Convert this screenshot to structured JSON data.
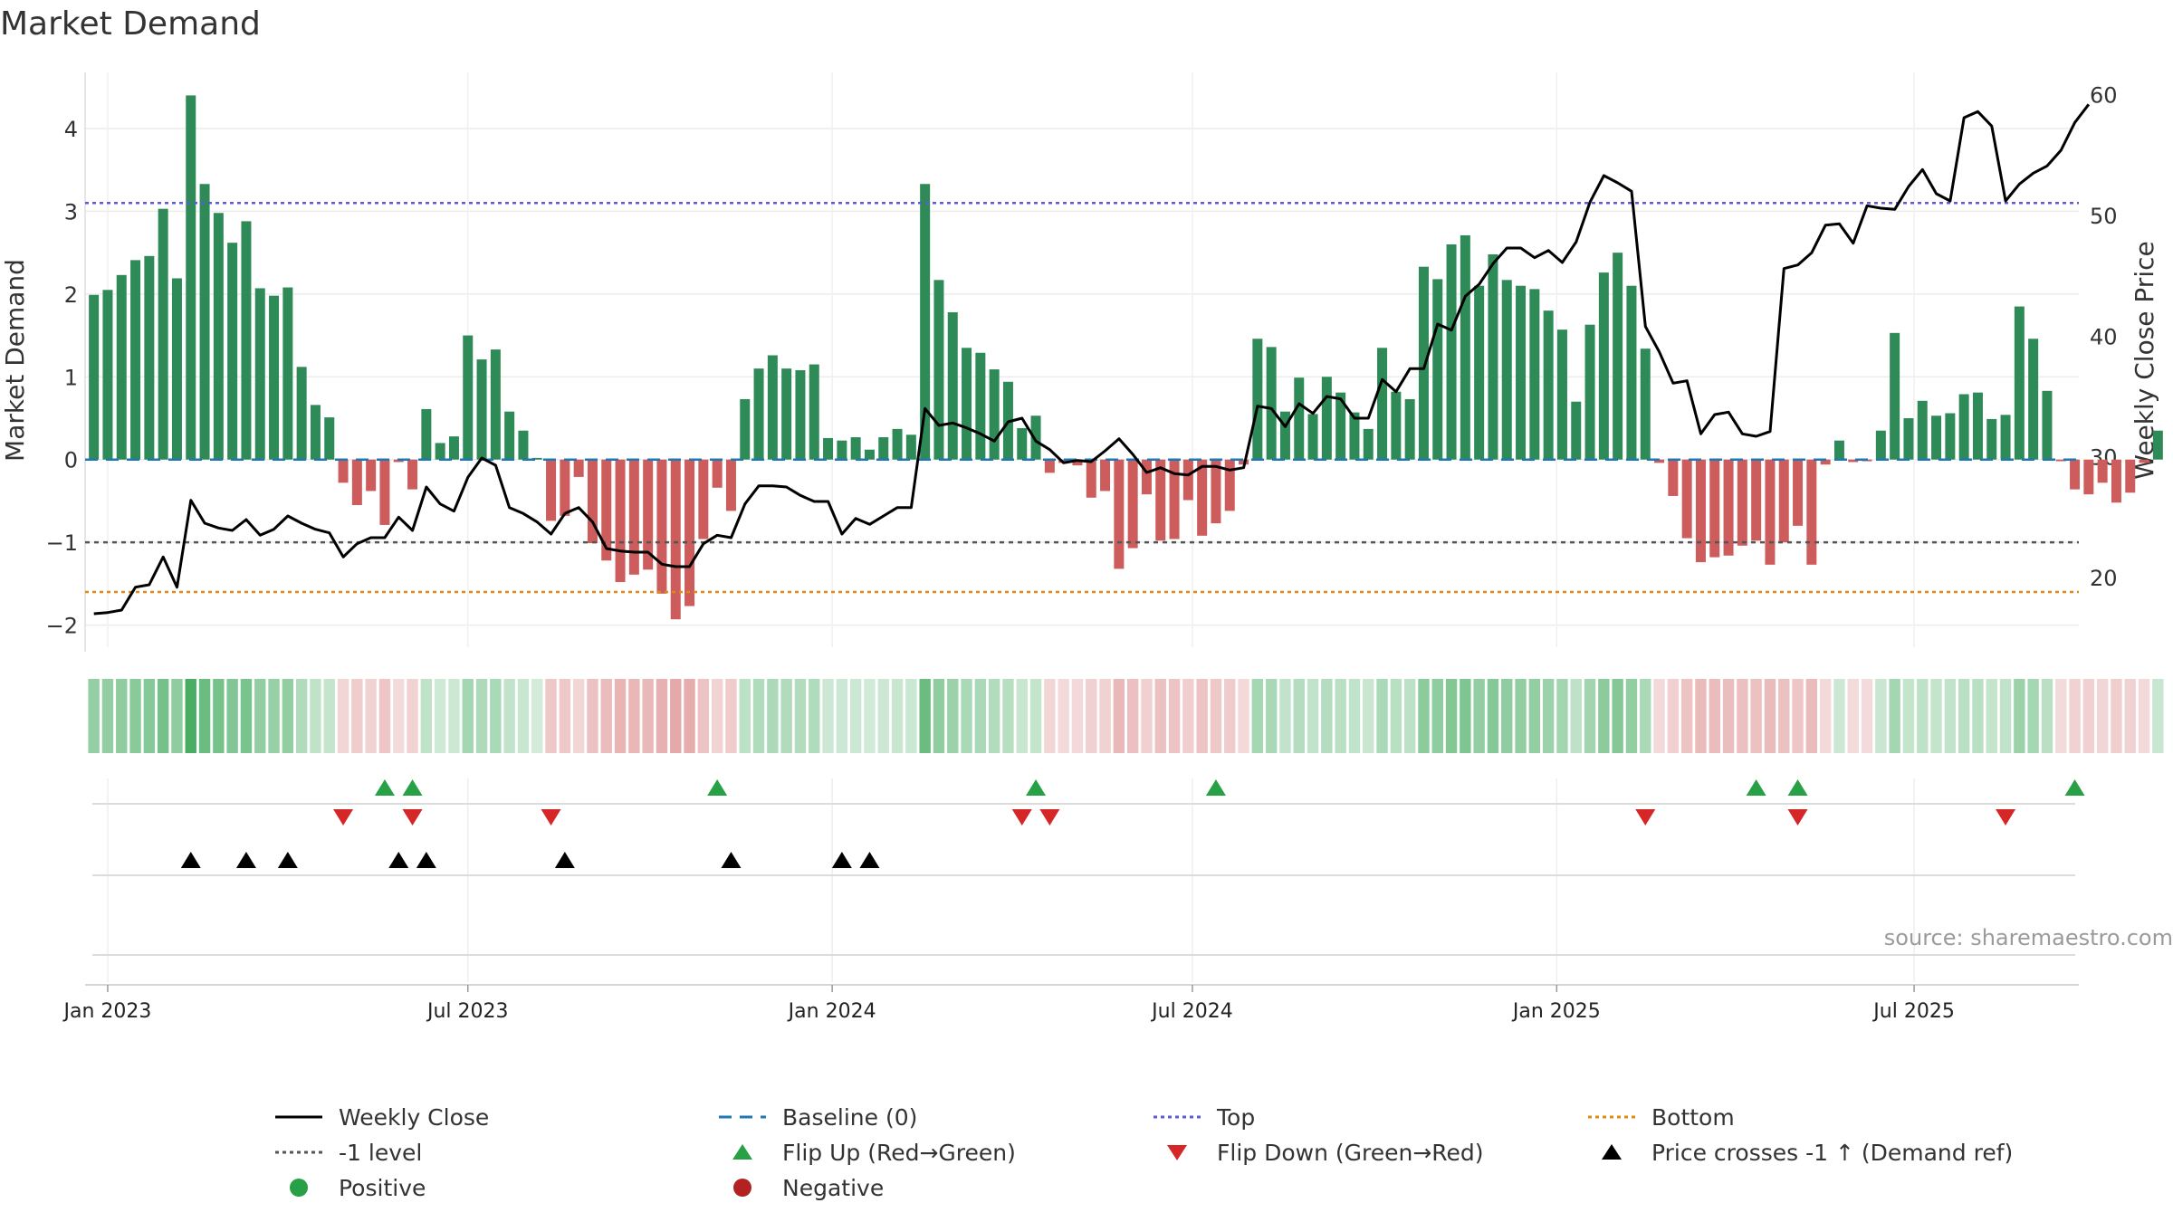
{
  "chart_data": {
    "type": "bar",
    "title": "Market Demand",
    "source": "source: sharemaestro.com",
    "ylabel_left": "Market Demand",
    "ylabel_right": "Weekly Close Price",
    "ylim_left": [
      -2.3,
      4.7
    ],
    "ylim_right": [
      14,
      62
    ],
    "yticks_left": [
      -2,
      -1,
      0,
      1,
      2,
      3,
      4
    ],
    "yticks_right": [
      20,
      30,
      40,
      50,
      60
    ],
    "x_start": "2022-12-26",
    "x_end": "2025-09-15",
    "x_ticks": [
      {
        "label": "Jan 2023",
        "week": 1
      },
      {
        "label": "Jul 2023",
        "week": 27
      },
      {
        "label": "Jan 2024",
        "week": 53.3
      },
      {
        "label": "Jul 2024",
        "week": 79.3
      },
      {
        "label": "Jan 2025",
        "week": 105.6
      },
      {
        "label": "Jul 2025",
        "week": 131.4
      }
    ],
    "reference_lines": {
      "top": 3.1,
      "bottom": -1.6,
      "minus_one": -1,
      "baseline": 0
    },
    "demand": [
      1.99,
      2.05,
      2.23,
      2.41,
      2.46,
      3.03,
      2.19,
      4.4,
      3.33,
      2.98,
      2.62,
      2.88,
      2.07,
      1.98,
      2.08,
      1.12,
      0.66,
      0.51,
      -0.28,
      -0.55,
      -0.38,
      -0.79,
      -0.03,
      -0.36,
      0.61,
      0.2,
      0.28,
      1.5,
      1.21,
      1.33,
      0.58,
      0.35,
      0.02,
      -0.74,
      -0.68,
      -0.21,
      -1.01,
      -1.22,
      -1.48,
      -1.39,
      -1.33,
      -1.62,
      -1.93,
      -1.77,
      -0.96,
      -0.34,
      -0.62,
      0.73,
      1.1,
      1.26,
      1.1,
      1.08,
      1.15,
      0.26,
      0.23,
      0.27,
      0.12,
      0.27,
      0.37,
      0.3,
      3.33,
      2.17,
      1.78,
      1.35,
      1.29,
      1.09,
      0.94,
      0.38,
      0.53,
      -0.16,
      -0.04,
      -0.07,
      -0.46,
      -0.38,
      -1.32,
      -1.07,
      -0.42,
      -0.98,
      -0.96,
      -0.49,
      -0.92,
      -0.77,
      -0.62,
      -0.06,
      1.46,
      1.36,
      0.58,
      0.99,
      0.55,
      1.0,
      0.81,
      0.57,
      0.37,
      1.35,
      0.82,
      0.73,
      2.33,
      2.18,
      2.6,
      2.71,
      2.1,
      2.48,
      2.17,
      2.1,
      2.06,
      1.8,
      1.57,
      0.7,
      1.63,
      2.26,
      2.5,
      2.1,
      1.34,
      -0.04,
      -0.44,
      -0.95,
      -1.24,
      -1.18,
      -1.16,
      -1.04,
      -0.98,
      -1.27,
      -1.0,
      -0.8,
      -1.27,
      -0.06,
      0.23,
      -0.03,
      -0.02,
      0.35,
      1.53,
      0.5,
      0.71,
      0.53,
      0.56,
      0.79,
      0.81,
      0.49,
      0.54,
      1.85,
      1.46,
      0.83,
      -0.02,
      -0.36,
      -0.42,
      -0.28,
      -0.52,
      -0.4,
      -0.04,
      0.35
    ],
    "close": [
      17.0,
      17.1,
      17.3,
      19.2,
      19.4,
      21.7,
      19.2,
      26.4,
      24.5,
      24.1,
      23.9,
      24.8,
      23.5,
      24.0,
      25.1,
      24.5,
      24.0,
      23.7,
      21.7,
      22.8,
      23.3,
      23.3,
      25.0,
      23.9,
      27.5,
      26.1,
      25.5,
      28.3,
      29.9,
      29.3,
      25.8,
      25.3,
      24.6,
      23.6,
      25.3,
      25.8,
      24.6,
      22.4,
      22.2,
      22.1,
      22.1,
      21.1,
      20.9,
      20.9,
      22.8,
      23.5,
      23.3,
      26.1,
      27.6,
      27.6,
      27.5,
      26.8,
      26.3,
      26.3,
      23.6,
      24.9,
      24.4,
      25.1,
      25.8,
      25.8,
      34.0,
      32.6,
      32.8,
      32.4,
      31.9,
      31.3,
      32.9,
      33.2,
      31.3,
      30.6,
      29.5,
      29.7,
      29.6,
      30.5,
      31.5,
      30.2,
      28.7,
      29.1,
      28.6,
      28.5,
      29.2,
      29.2,
      28.9,
      29.1,
      34.2,
      34.0,
      32.5,
      34.4,
      33.6,
      35.0,
      34.8,
      33.2,
      33.2,
      36.4,
      35.4,
      37.3,
      37.3,
      41.0,
      40.5,
      43.3,
      44.3,
      46.0,
      47.3,
      47.3,
      46.5,
      47.1,
      46.1,
      47.8,
      51.1,
      53.3,
      52.7,
      52.0,
      40.8,
      38.7,
      36.1,
      36.3,
      31.9,
      33.5,
      33.7,
      31.9,
      31.7,
      32.1,
      45.6,
      45.9,
      46.9,
      49.2,
      49.3,
      47.7,
      50.8,
      50.6,
      50.5,
      52.4,
      53.8,
      51.8,
      51.2,
      58.1,
      58.6,
      57.4,
      51.2,
      52.6,
      53.5,
      54.1,
      55.4,
      57.7,
      59.2
    ],
    "flip_up_weeks": [
      21,
      23,
      45,
      68,
      81,
      120,
      123,
      143
    ],
    "flip_down_weeks": [
      18,
      23,
      33,
      67,
      69,
      112,
      123,
      138
    ],
    "price_cross_weeks": [
      7,
      11,
      14,
      22,
      24,
      34,
      46,
      54,
      56
    ],
    "legend": [
      {
        "label": "Weekly Close",
        "symbol": "solid-line",
        "color": "#000000"
      },
      {
        "label": "Baseline (0)",
        "symbol": "dashed-line",
        "color": "#1f77b4"
      },
      {
        "label": "Top",
        "symbol": "dotted-line",
        "color": "#5b5bd6"
      },
      {
        "label": "Bottom",
        "symbol": "dotted-line",
        "color": "#e08a16"
      },
      {
        "label": "-1 level",
        "symbol": "dotted-line",
        "color": "#555555"
      },
      {
        "label": "Flip Up (Red→Green)",
        "symbol": "triangle-up",
        "color": "#27a046"
      },
      {
        "label": "Flip Down (Green→Red)",
        "symbol": "triangle-down",
        "color": "#d62728"
      },
      {
        "label": "Price crosses -1 ↑ (Demand ref)",
        "symbol": "triangle-up",
        "color": "#000000"
      },
      {
        "label": "Positive",
        "symbol": "circle",
        "color": "#27a046"
      },
      {
        "label": "Negative",
        "symbol": "circle",
        "color": "#b22222"
      }
    ],
    "colors": {
      "positive": "#2e8b57",
      "negative": "#cd5c5c",
      "close": "#000000",
      "heat_pos": "#3aa657",
      "heat_neg": "#cd5c5c"
    }
  }
}
